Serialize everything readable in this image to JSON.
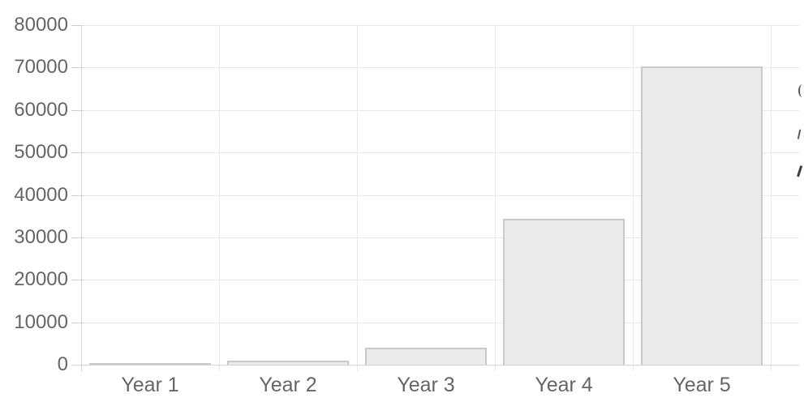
{
  "chart_data": {
    "type": "bar",
    "title": "",
    "xlabel": "",
    "ylabel": "",
    "categories": [
      "Year 1",
      "Year 2",
      "Year 3",
      "Year 4",
      "Year 5"
    ],
    "values": [
      300,
      1000,
      4100,
      34300,
      70200
    ],
    "ylim": [
      0,
      80000
    ],
    "ytick_step": 10000,
    "ytick_labels": [
      "0",
      "10000",
      "20000",
      "30000",
      "40000",
      "50000",
      "60000",
      "70000",
      "80000"
    ],
    "grid": true,
    "legend": "none",
    "colors": {
      "background": "#ffffff",
      "bar_fill": "#ebebeb",
      "bar_border": "#c9c9c9",
      "gridline": "#e7e7e7",
      "axis_line": "#d4d4d4",
      "tick": "#cfcfcf",
      "label_text": "#666666"
    }
  },
  "edge_fragments": {
    "description": "unreadable text fragments clipped at the right edge of the screenshot",
    "items": [
      {
        "name": "clipped-glyph-arc",
        "y": 104
      },
      {
        "name": "clipped-glyph-tick",
        "y": 160
      },
      {
        "name": "clipped-glyph-stroke",
        "y": 205
      }
    ]
  }
}
